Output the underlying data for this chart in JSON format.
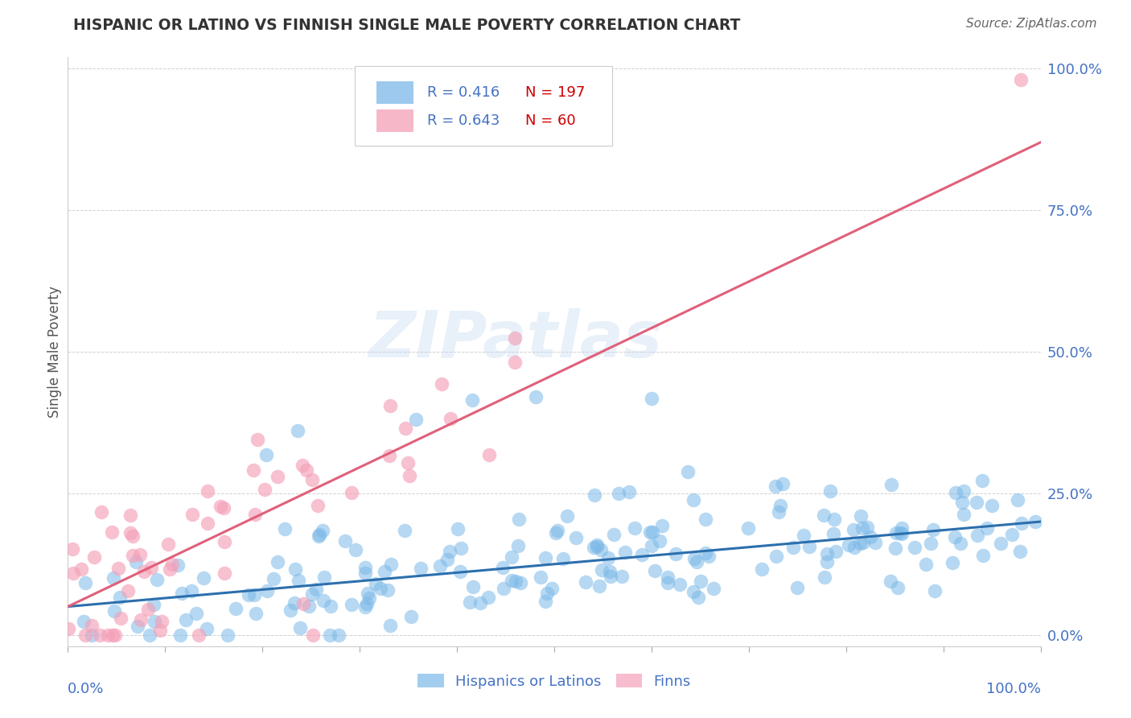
{
  "title": "HISPANIC OR LATINO VS FINNISH SINGLE MALE POVERTY CORRELATION CHART",
  "source": "Source: ZipAtlas.com",
  "ylabel": "Single Male Poverty",
  "watermark": "ZIPatlas",
  "blue_R": 0.416,
  "blue_N": 197,
  "pink_R": 0.643,
  "pink_N": 60,
  "blue_color": "#7bb8e8",
  "blue_line_color": "#2c6fad",
  "pink_color": "#f4a0b8",
  "pink_line_color": "#e0607a",
  "ytick_labels": [
    "0.0%",
    "25.0%",
    "50.0%",
    "75.0%",
    "100.0%"
  ],
  "ytick_values": [
    0.0,
    0.25,
    0.5,
    0.75,
    1.0
  ],
  "xlim": [
    0.0,
    1.0
  ],
  "ylim": [
    -0.02,
    1.02
  ],
  "blue_line_x": [
    0.0,
    1.0
  ],
  "blue_line_y": [
    0.05,
    0.2
  ],
  "pink_line_x": [
    0.0,
    1.0
  ],
  "pink_line_y": [
    0.05,
    0.87
  ],
  "background_color": "#ffffff",
  "grid_color": "#d0d0d0",
  "title_color": "#333333",
  "legend_R_color": "#4472c4",
  "legend_N_color": "#cc0000",
  "axis_label_color": "#4472c4",
  "source_color": "#666666"
}
